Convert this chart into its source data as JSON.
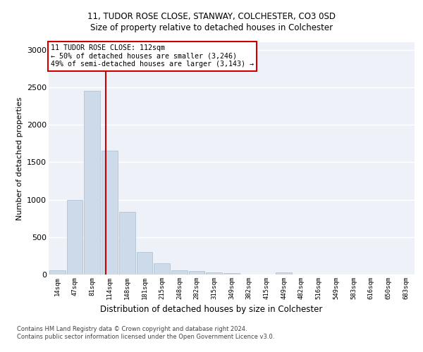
{
  "title1": "11, TUDOR ROSE CLOSE, STANWAY, COLCHESTER, CO3 0SD",
  "title2": "Size of property relative to detached houses in Colchester",
  "xlabel": "Distribution of detached houses by size in Colchester",
  "ylabel": "Number of detached properties",
  "bar_labels": [
    "14sqm",
    "47sqm",
    "81sqm",
    "114sqm",
    "148sqm",
    "181sqm",
    "215sqm",
    "248sqm",
    "282sqm",
    "315sqm",
    "349sqm",
    "382sqm",
    "415sqm",
    "449sqm",
    "482sqm",
    "516sqm",
    "549sqm",
    "583sqm",
    "616sqm",
    "650sqm",
    "683sqm"
  ],
  "bar_values": [
    55,
    1000,
    2450,
    1650,
    840,
    300,
    150,
    55,
    45,
    30,
    20,
    0,
    0,
    30,
    0,
    0,
    0,
    0,
    0,
    0,
    0
  ],
  "bar_color": "#ccdaea",
  "bar_edgecolor": "#aabccc",
  "vline_x": 2.78,
  "vline_color": "#cc0000",
  "annotation_text": "11 TUDOR ROSE CLOSE: 112sqm\n← 50% of detached houses are smaller (3,246)\n49% of semi-detached houses are larger (3,143) →",
  "annotation_box_edgecolor": "#cc0000",
  "ylim": [
    0,
    3100
  ],
  "yticks": [
    0,
    500,
    1000,
    1500,
    2000,
    2500,
    3000
  ],
  "footer1": "Contains HM Land Registry data © Crown copyright and database right 2024.",
  "footer2": "Contains public sector information licensed under the Open Government Licence v3.0.",
  "bg_color": "#eef2f8",
  "grid_color": "#ffffff"
}
